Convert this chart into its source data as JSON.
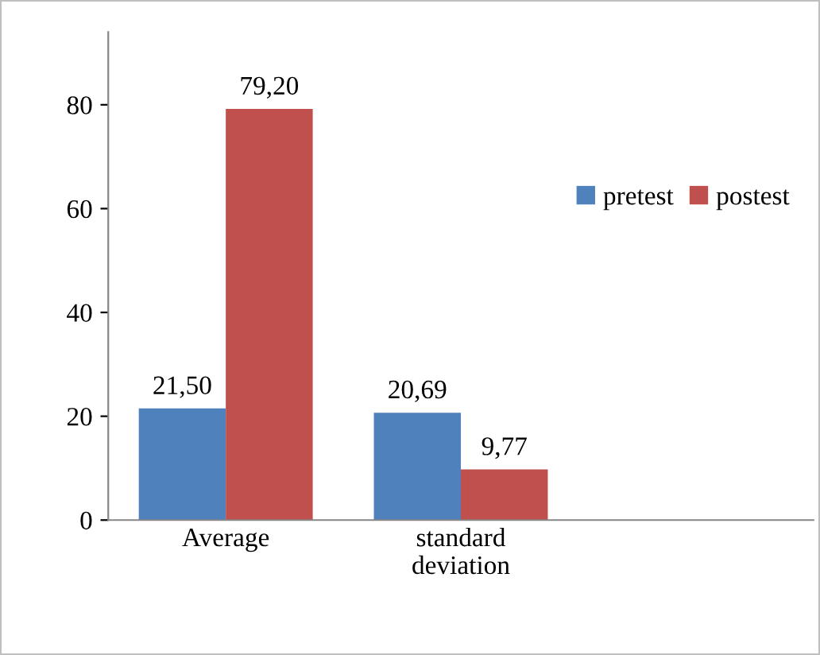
{
  "chart_data": {
    "type": "bar",
    "categories": [
      "Average",
      "standard\ndeviation",
      null
    ],
    "series": [
      {
        "name": "pretest",
        "color": "#4f81bd",
        "values": [
          21.5,
          20.69,
          null
        ],
        "value_labels": [
          "21,50",
          "20,69",
          null
        ]
      },
      {
        "name": "postest",
        "color": "#c0504d",
        "values": [
          79.2,
          9.77,
          null
        ],
        "value_labels": [
          "79,20",
          "9,77",
          null
        ]
      }
    ],
    "ylim": [
      0,
      94
    ],
    "yticks": [
      0,
      20,
      40,
      60,
      80
    ],
    "grid": false,
    "legend": "right"
  }
}
